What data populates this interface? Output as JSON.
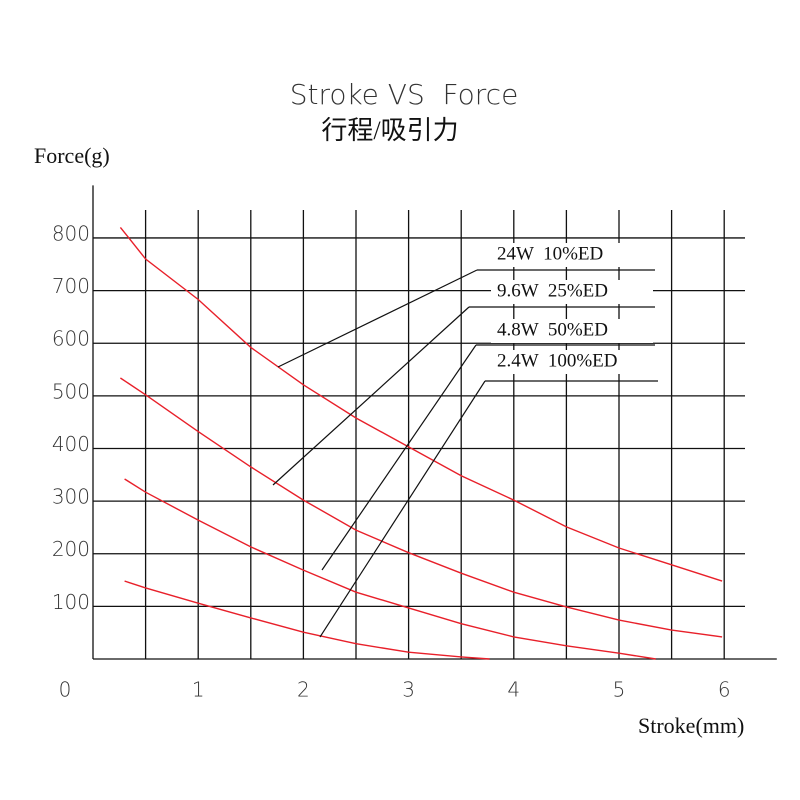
{
  "chart_data": {
    "type": "line",
    "title": "Stroke VS  Force",
    "subtitle": "行程/吸引力",
    "y_label": "Force(g)",
    "x_label": "Stroke(mm)",
    "xlim": [
      0,
      6.5
    ],
    "ylim": [
      0,
      900
    ],
    "xticks": [
      0,
      1,
      2,
      3,
      4,
      5,
      6
    ],
    "xgrid": [
      0.5,
      1,
      1.5,
      2,
      2.5,
      3,
      3.5,
      4,
      4.5,
      5,
      5.5,
      6
    ],
    "yticks": [
      100,
      200,
      300,
      400,
      500,
      600,
      700,
      800
    ],
    "grid": true,
    "series": [
      {
        "name": "24W  10%ED",
        "color": "#e8202a",
        "x": [
          0.26,
          0.5,
          1.0,
          1.5,
          2.0,
          2.5,
          3.0,
          3.5,
          4.0,
          4.5,
          5.0,
          5.5,
          5.98
        ],
        "values": [
          820,
          760,
          683,
          592,
          521,
          458,
          403,
          348,
          302,
          251,
          211,
          179,
          148
        ]
      },
      {
        "name": "9.6W  25%ED",
        "color": "#e8202a",
        "x": [
          0.26,
          0.5,
          1.0,
          1.5,
          2.0,
          2.5,
          3.0,
          3.5,
          4.0,
          4.5,
          5.0,
          5.5,
          5.98
        ],
        "values": [
          534,
          502,
          432,
          365,
          302,
          245,
          202,
          163,
          127,
          99,
          74,
          55,
          42
        ]
      },
      {
        "name": "4.8W  50%ED",
        "color": "#e8202a",
        "x": [
          0.3,
          0.5,
          1.0,
          1.5,
          2.0,
          2.5,
          3.0,
          3.5,
          4.0,
          4.5,
          5.0,
          5.35
        ],
        "values": [
          342,
          317,
          264,
          213,
          169,
          127,
          97,
          67,
          42,
          25,
          11,
          0
        ]
      },
      {
        "name": "2.4W  100%ED",
        "color": "#e8202a",
        "x": [
          0.3,
          0.5,
          1.0,
          1.5,
          2.0,
          2.5,
          3.0,
          3.5,
          3.77
        ],
        "values": [
          148,
          135,
          106,
          78,
          51,
          29,
          13,
          4,
          0
        ]
      }
    ]
  }
}
